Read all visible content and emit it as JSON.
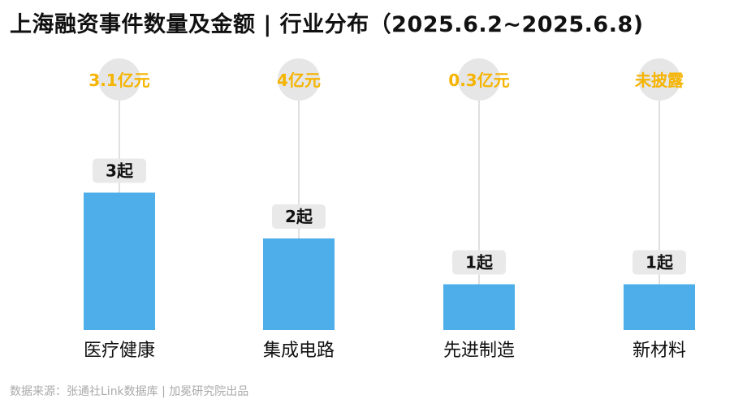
{
  "chart_data": {
    "type": "bar",
    "title": "上海融资事件数量及金额 | 行业分布（2025.6.2~2025.6.8)",
    "categories": [
      "医疗健康",
      "集成电路",
      "先进制造",
      "新材料"
    ],
    "series": [
      {
        "values": [
          3,
          2,
          1,
          1
        ],
        "value_labels": [
          "3起",
          "2起",
          "1起",
          "1起"
        ]
      }
    ],
    "amount_labels": [
      "3.1亿元",
      "4亿元",
      "0.3亿元",
      "未披露"
    ],
    "source": "数据来源：张通社Link数据库 | 加冕研究院出品",
    "colors": {
      "bar": "#4daeea",
      "amount_text": "#f5b400",
      "amount_circle": "#e6e6e6",
      "count_badge": "#e9e9e9",
      "connector": "#e0e0e0",
      "label_text": "#111111"
    }
  }
}
